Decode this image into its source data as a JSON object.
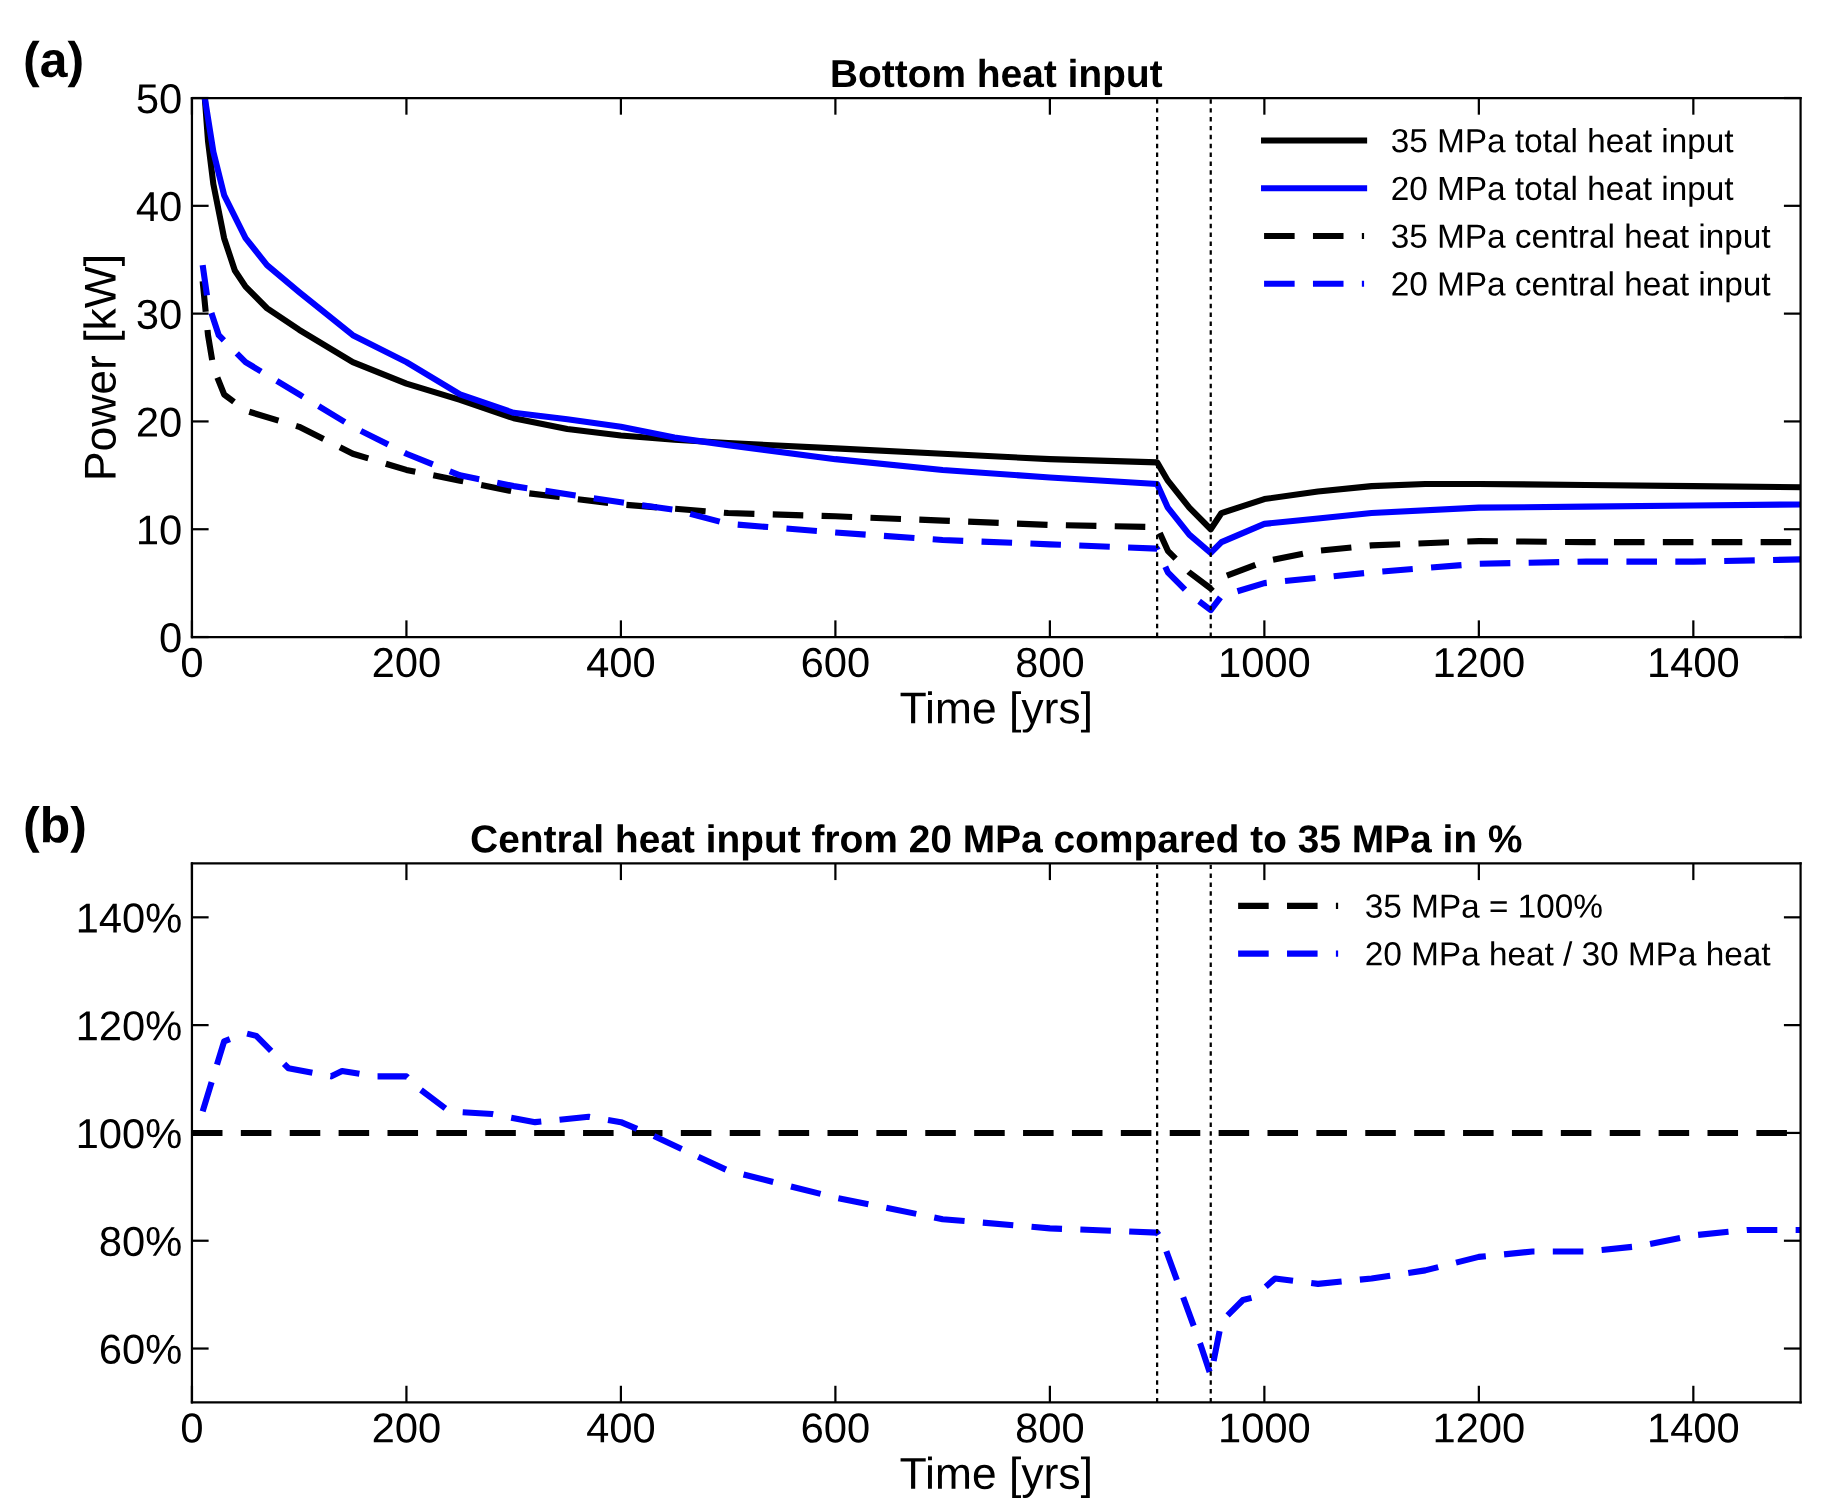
{
  "chart_data": [
    {
      "type": "line",
      "title": "Bottom heat input",
      "xlabel": "Time [yrs]",
      "ylabel": "Power [kW]",
      "annotations": [
        "(a)"
      ],
      "xlim": [
        0,
        1500
      ],
      "xticks": [
        0,
        200,
        400,
        600,
        800,
        1000,
        1200,
        1400
      ],
      "ylim": [
        0,
        50
      ],
      "yticks": [
        0,
        10,
        20,
        30,
        40,
        50
      ],
      "grid": false,
      "legend": "top right",
      "marker": "none",
      "ref_lines": [
        {
          "axis": "x",
          "value": 900,
          "color": "#000000",
          "line_style": "dotted"
        },
        {
          "axis": "x",
          "value": 950,
          "color": "#000000",
          "line_style": "dotted"
        }
      ],
      "series": [
        {
          "name": "35 MPa total heat input",
          "color": "#000000",
          "line_style": "solid",
          "x": [
            12,
            15,
            20,
            30,
            40,
            50,
            70,
            100,
            150,
            200,
            250,
            300,
            350,
            400,
            450,
            500,
            600,
            700,
            800,
            900,
            910,
            930,
            950,
            960,
            1000,
            1050,
            1100,
            1150,
            1200,
            1300,
            1400,
            1500
          ],
          "values": [
            50,
            46,
            42,
            37,
            34,
            32.5,
            30.5,
            28.5,
            25.5,
            23.5,
            22,
            20.3,
            19.3,
            18.7,
            18.3,
            18,
            17.5,
            17,
            16.5,
            16.2,
            14.5,
            12,
            10,
            11.5,
            12.8,
            13.5,
            14,
            14.2,
            14.2,
            14.1,
            14,
            13.9
          ]
        },
        {
          "name": "20 MPa total heat input",
          "color": "#0000ff",
          "line_style": "solid",
          "x": [
            12,
            20,
            30,
            50,
            70,
            100,
            150,
            200,
            250,
            300,
            350,
            400,
            450,
            500,
            600,
            700,
            800,
            900,
            910,
            930,
            950,
            960,
            1000,
            1050,
            1100,
            1200,
            1300,
            1400,
            1500
          ],
          "values": [
            50,
            45,
            41,
            37,
            34.5,
            32,
            28,
            25.5,
            22.5,
            20.8,
            20.2,
            19.5,
            18.5,
            17.8,
            16.5,
            15.5,
            14.8,
            14.2,
            12,
            9.5,
            7.8,
            8.8,
            10.5,
            11,
            11.5,
            12,
            12.1,
            12.2,
            12.3
          ]
        },
        {
          "name": "35 MPa central heat input",
          "color": "#000000",
          "line_style": "dashed",
          "x": [
            10,
            15,
            20,
            30,
            50,
            100,
            150,
            200,
            250,
            300,
            400,
            500,
            600,
            700,
            800,
            900,
            910,
            930,
            950,
            960,
            1000,
            1050,
            1100,
            1200,
            1300,
            1400,
            1500
          ],
          "values": [
            33,
            28,
            25,
            22.5,
            21,
            19.5,
            17,
            15.5,
            14.5,
            13.5,
            12.3,
            11.5,
            11.2,
            10.8,
            10.4,
            10.2,
            8,
            6,
            4.5,
            5.5,
            7,
            8,
            8.5,
            8.9,
            8.8,
            8.8,
            8.8
          ]
        },
        {
          "name": "20 MPa central heat input",
          "color": "#0000ff",
          "line_style": "dashed",
          "x": [
            10,
            15,
            25,
            50,
            100,
            150,
            200,
            250,
            300,
            400,
            450,
            500,
            600,
            700,
            800,
            900,
            910,
            930,
            950,
            960,
            1000,
            1100,
            1200,
            1300,
            1400,
            1500
          ],
          "values": [
            34.5,
            31,
            28,
            25.5,
            22.5,
            19.5,
            17,
            15,
            14,
            12.5,
            11.8,
            10.5,
            9.7,
            9,
            8.6,
            8.2,
            6,
            4,
            2.5,
            3.8,
            5,
            6,
            6.8,
            7,
            7,
            7.2
          ]
        }
      ]
    },
    {
      "type": "line",
      "title": "Central heat input from 20 MPa compared to 35 MPa in %",
      "xlabel": "Time [yrs]",
      "annotations": [
        "(b)"
      ],
      "xlim": [
        0,
        1500
      ],
      "xticks": [
        0,
        200,
        400,
        600,
        800,
        1000,
        1200,
        1400
      ],
      "ylim": [
        50,
        150
      ],
      "yticks": [
        {
          "value": 60,
          "label": "60%"
        },
        {
          "value": 80,
          "label": "80%"
        },
        {
          "value": 100,
          "label": "100%"
        },
        {
          "value": 120,
          "label": "120%"
        },
        {
          "value": 140,
          "label": "140%"
        }
      ],
      "grid": false,
      "legend": "top right",
      "marker": "none",
      "ref_lines": [
        {
          "axis": "x",
          "value": 900,
          "color": "#000000",
          "line_style": "dotted"
        },
        {
          "axis": "x",
          "value": 950,
          "color": "#000000",
          "line_style": "dotted"
        }
      ],
      "series": [
        {
          "name": "35 MPa = 100%",
          "color": "#000000",
          "line_style": "dashed",
          "x": [
            0,
            1500
          ],
          "values": [
            100,
            100
          ]
        },
        {
          "name": "20 MPa heat / 30 MPa heat",
          "color": "#0000ff",
          "line_style": "dashed",
          "x": [
            10,
            30,
            50,
            60,
            90,
            130,
            140,
            170,
            200,
            210,
            240,
            280,
            320,
            370,
            400,
            430,
            500,
            600,
            700,
            800,
            900,
            905,
            940,
            950,
            960,
            980,
            990,
            1010,
            1050,
            1100,
            1150,
            1200,
            1250,
            1300,
            1350,
            1400,
            1450,
            1500
          ],
          "values": [
            104,
            117,
            118.5,
            118,
            112,
            110.5,
            111.5,
            110.5,
            110.5,
            108.5,
            104,
            103.5,
            102,
            103,
            102,
            99.5,
            93,
            88,
            84,
            82.3,
            81.5,
            80,
            61,
            55,
            65,
            69,
            69.5,
            73,
            72,
            73,
            74.5,
            77,
            78,
            78,
            79,
            81,
            82,
            82
          ]
        }
      ]
    }
  ]
}
